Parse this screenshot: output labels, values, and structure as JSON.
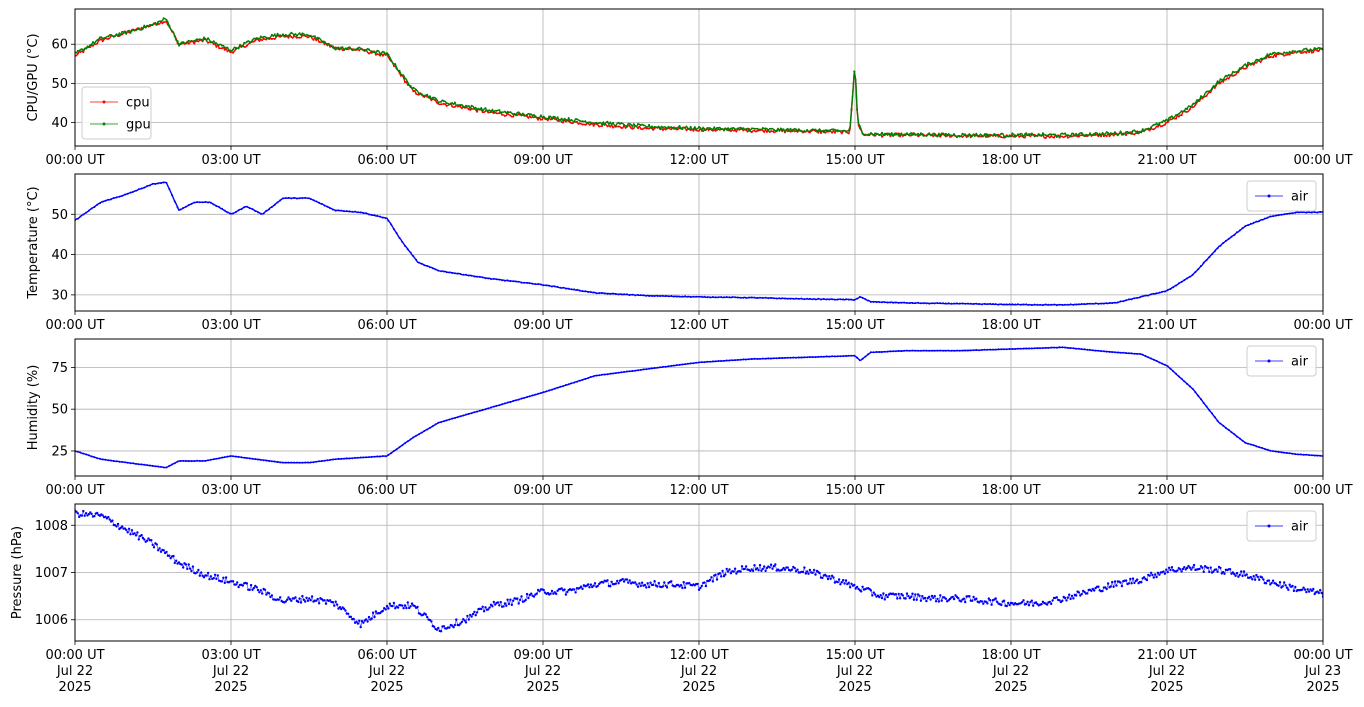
{
  "colors": {
    "cpu": "#ff0000",
    "gpu": "#008000",
    "air": "#0000ff",
    "grid": "#b0b0b0"
  },
  "time_tick_labels": [
    "00:00 UT",
    "03:00 UT",
    "06:00 UT",
    "09:00 UT",
    "12:00 UT",
    "15:00 UT",
    "18:00 UT",
    "21:00 UT",
    "00:00 UT"
  ],
  "bottom_date_labels": [
    [
      "Jul 22",
      "2025"
    ],
    [
      "Jul 22",
      "2025"
    ],
    [
      "Jul 22",
      "2025"
    ],
    [
      "Jul 22",
      "2025"
    ],
    [
      "Jul 22",
      "2025"
    ],
    [
      "Jul 22",
      "2025"
    ],
    [
      "Jul 22",
      "2025"
    ],
    [
      "Jul 22",
      "2025"
    ],
    [
      "Jul 23",
      "2025"
    ]
  ],
  "chart_data": [
    {
      "type": "line",
      "ylabel": "CPU/GPU (°C)",
      "xlim": [
        "2025-07-22 00:00",
        "2025-07-23 00:00"
      ],
      "ylim": [
        34,
        69
      ],
      "yticks": [
        40,
        50,
        60
      ],
      "grid": true,
      "legend": "lower-left",
      "series": [
        {
          "name": "cpu",
          "color": "#ff0000",
          "x_hours": [
            0,
            0.5,
            1,
            1.5,
            1.75,
            2,
            2.5,
            3,
            3.5,
            4,
            4.5,
            5,
            5.5,
            6,
            6.5,
            7,
            8,
            9,
            10,
            11,
            12,
            13,
            14,
            14.9,
            15.0,
            15.05,
            15.15,
            15.5,
            16,
            17,
            18,
            19,
            20,
            20.5,
            21,
            21.5,
            22,
            22.5,
            23,
            23.5,
            24
          ],
          "values": [
            57,
            61,
            63,
            65,
            66,
            60,
            61,
            58,
            61,
            62,
            62,
            59,
            58.5,
            57,
            48,
            45,
            42.5,
            41,
            39.5,
            38.5,
            38.2,
            38,
            37.8,
            37.5,
            55,
            40,
            37,
            36.8,
            36.8,
            36.6,
            36.5,
            36.5,
            37,
            37.5,
            40,
            44,
            50,
            54,
            57,
            58,
            58.5
          ]
        },
        {
          "name": "gpu",
          "color": "#008000",
          "x_hours": [
            0,
            0.5,
            1,
            1.5,
            1.75,
            2,
            2.5,
            3,
            3.5,
            4,
            4.5,
            5,
            5.5,
            6,
            6.5,
            7,
            8,
            9,
            10,
            11,
            12,
            13,
            14,
            14.9,
            15.0,
            15.05,
            15.15,
            15.5,
            16,
            17,
            18,
            19,
            20,
            20.5,
            21,
            21.5,
            22,
            22.5,
            23,
            23.5,
            24
          ],
          "values": [
            57.5,
            61.5,
            63,
            65,
            66.5,
            60,
            61.5,
            58.5,
            61.5,
            62.5,
            62.5,
            59,
            58.8,
            57.5,
            48.5,
            45.5,
            43,
            41.5,
            40,
            39,
            38.5,
            38.3,
            38,
            37.8,
            55,
            40,
            37.2,
            37,
            37,
            36.8,
            36.8,
            36.8,
            37.2,
            37.8,
            40.5,
            44.5,
            50.5,
            54.5,
            57.5,
            58.3,
            58.8
          ]
        }
      ]
    },
    {
      "type": "line",
      "ylabel": "Temperature (°C)",
      "xlim": [
        "2025-07-22 00:00",
        "2025-07-23 00:00"
      ],
      "ylim": [
        26,
        60
      ],
      "yticks": [
        30,
        40,
        50
      ],
      "grid": true,
      "legend": "top-right",
      "series": [
        {
          "name": "air",
          "color": "#0000ff",
          "x_hours": [
            0,
            0.5,
            1,
            1.5,
            1.75,
            2,
            2.3,
            2.6,
            3,
            3.3,
            3.6,
            4,
            4.5,
            5,
            5.5,
            6,
            6.3,
            6.6,
            7,
            8,
            9,
            10,
            11,
            12,
            13,
            14,
            15,
            15.1,
            15.3,
            16,
            17,
            18,
            19,
            20,
            21,
            21.5,
            22,
            22.5,
            23,
            23.5,
            24
          ],
          "values": [
            48.5,
            53,
            55,
            57.5,
            58,
            51,
            53,
            53,
            50,
            52,
            50,
            54,
            54,
            51,
            50.5,
            49,
            43,
            38,
            36,
            34,
            32.5,
            30.5,
            29.8,
            29.5,
            29.3,
            29,
            28.8,
            29.5,
            28.3,
            28,
            27.8,
            27.6,
            27.5,
            28,
            31,
            35,
            42,
            47,
            49.5,
            50.5,
            50.5
          ]
        }
      ]
    },
    {
      "type": "line",
      "ylabel": "Humidity (%)",
      "xlim": [
        "2025-07-22 00:00",
        "2025-07-23 00:00"
      ],
      "ylim": [
        10,
        92
      ],
      "yticks": [
        25,
        50,
        75
      ],
      "grid": true,
      "legend": "top-right",
      "series": [
        {
          "name": "air",
          "color": "#0000ff",
          "x_hours": [
            0,
            0.5,
            1,
            1.5,
            1.75,
            2,
            2.5,
            3,
            3.5,
            4,
            4.5,
            5,
            5.5,
            6,
            6.5,
            7,
            8,
            9,
            10,
            11,
            12,
            13,
            14,
            15,
            15.1,
            15.3,
            16,
            17,
            18,
            19,
            20,
            20.5,
            21,
            21.5,
            22,
            22.5,
            23,
            23.5,
            24
          ],
          "values": [
            25,
            20,
            18,
            16,
            15,
            19,
            19,
            22,
            20,
            18,
            18,
            20,
            21,
            22,
            33,
            42,
            51,
            60,
            70,
            74,
            78,
            80,
            81,
            82,
            79,
            84,
            85,
            85,
            86,
            87,
            84,
            83,
            76,
            62,
            42,
            30,
            25,
            23,
            22
          ]
        }
      ]
    },
    {
      "type": "scatter",
      "ylabel": "Pressure (hPa)",
      "xlim": [
        "2025-07-22 00:00",
        "2025-07-23 00:00"
      ],
      "ylim": [
        1005.55,
        1008.45
      ],
      "yticks": [
        1006,
        1007,
        1008
      ],
      "grid": true,
      "legend": "top-right",
      "series": [
        {
          "name": "air",
          "color": "#0000ff",
          "x_hours": [
            0,
            0.5,
            1,
            1.5,
            2,
            2.5,
            3,
            3.5,
            4,
            4.5,
            5,
            5.5,
            6,
            6.5,
            7,
            7.5,
            8,
            8.5,
            9,
            9.5,
            10,
            10.5,
            11,
            11.5,
            12,
            12.5,
            13,
            13.5,
            14,
            14.5,
            15,
            15.5,
            16,
            16.5,
            17,
            17.5,
            18,
            18.5,
            19,
            19.5,
            20,
            20.5,
            21,
            21.5,
            22,
            22.5,
            23,
            23.5,
            24
          ],
          "values": [
            1008.25,
            1008.2,
            1007.9,
            1007.6,
            1007.2,
            1006.95,
            1006.8,
            1006.65,
            1006.4,
            1006.45,
            1006.35,
            1005.9,
            1006.3,
            1006.3,
            1005.8,
            1006.0,
            1006.3,
            1006.4,
            1006.6,
            1006.6,
            1006.75,
            1006.8,
            1006.75,
            1006.75,
            1006.7,
            1007.0,
            1007.1,
            1007.1,
            1007.05,
            1006.9,
            1006.7,
            1006.5,
            1006.5,
            1006.45,
            1006.45,
            1006.4,
            1006.35,
            1006.35,
            1006.45,
            1006.6,
            1006.75,
            1006.85,
            1007.05,
            1007.1,
            1007.05,
            1006.95,
            1006.8,
            1006.65,
            1006.55
          ]
        }
      ]
    }
  ]
}
